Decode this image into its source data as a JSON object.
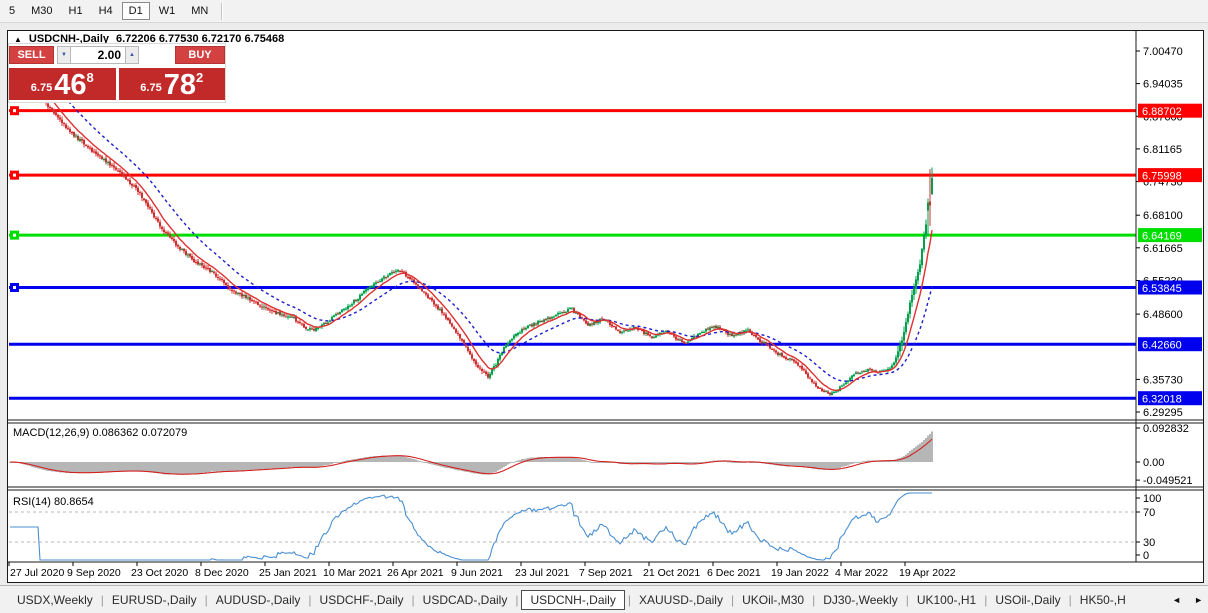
{
  "toolbar": {
    "timeframes": [
      "5",
      "M30",
      "H1",
      "H4",
      "D1",
      "W1",
      "MN"
    ],
    "active": "D1"
  },
  "chart": {
    "title_arrow": "▲",
    "symbol": "USDCNH-,Daily",
    "ohlc": "6.72206 6.77530 6.72170 6.75468",
    "trade_panel": {
      "sell_label": "SELL",
      "buy_label": "BUY",
      "volume": "2.00",
      "spin_down_icon": "▼",
      "spin_up_icon": "▲",
      "sell_small": "6.75",
      "sell_big": "46",
      "sell_sup": "8",
      "buy_small": "6.75",
      "buy_big": "78",
      "buy_sup": "2"
    }
  },
  "macd": {
    "label": "MACD(12,26,9) 0.086362 0.072079",
    "axis": [
      "0.092832",
      "0.00",
      "-0.049521"
    ]
  },
  "rsi": {
    "label": "RSI(14) 80.8654",
    "axis": [
      "100",
      "70",
      "30",
      "0"
    ]
  },
  "y_axis": {
    "ticks": [
      "7.00470",
      "6.94035",
      "6.87600",
      "6.81165",
      "6.74730",
      "6.68100",
      "6.61665",
      "6.55230",
      "6.48600",
      "6.35730",
      "6.29295"
    ]
  },
  "x_axis": {
    "dates": [
      "27 Jul 2020",
      "9 Sep 2020",
      "23 Oct 2020",
      "8 Dec 2020",
      "25 Jan 2021",
      "10 Mar 2021",
      "26 Apr 2021",
      "9 Jun 2021",
      "23 Jul 2021",
      "7 Sep 2021",
      "21 Oct 2021",
      "6 Dec 2021",
      "19 Jan 2022",
      "4 Mar 2022",
      "19 Apr 2022"
    ]
  },
  "tabs": {
    "items": [
      "USDX,Weekly",
      "EURUSD-,Daily",
      "AUDUSD-,Daily",
      "USDCHF-,Daily",
      "USDCAD-,Daily",
      "USDCNH-,Daily",
      "XAUUSD-,Daily",
      "UKOil-,M30",
      "DJ30-,Weekly",
      "UK100-,H1",
      "USOil-,Daily",
      "HK50-,H"
    ],
    "active": "USDCNH-,Daily",
    "scroll_left_icon": "◄",
    "scroll_right_icon": "►"
  },
  "colors": {
    "candle_up": "#00a14b",
    "candle_down": "#cf2f2f",
    "ma_fast": "#e03030",
    "ma_slow": "#1d1dcf",
    "level_red": "#ff0000",
    "level_green": "#00dd00",
    "level_blue": "#0000ee",
    "macd_hist": "#b6b6b6",
    "macd_signal": "#d42020",
    "rsi_line": "#4a8fd2",
    "trade_red": "#c22a2a"
  },
  "chart_data": {
    "type": "candlestick",
    "symbol": "USDCNH",
    "timeframe": "Daily",
    "current_bar": {
      "open": 6.72206,
      "high": 6.7753,
      "low": 6.7217,
      "close": 6.75468
    },
    "y_range": [
      6.29295,
      7.0047
    ],
    "levels": [
      {
        "label": "6.88702",
        "price": 6.88702,
        "color": "red",
        "handle": true
      },
      {
        "label": "6.75998",
        "price": 6.75998,
        "color": "red",
        "handle": true
      },
      {
        "label": "6.64169",
        "price": 6.64169,
        "color": "green",
        "handle": true
      },
      {
        "label": "6.53845",
        "price": 6.53845,
        "color": "blue",
        "handle": true
      },
      {
        "label": "6.42660",
        "price": 6.4266,
        "color": "blue",
        "handle": false
      },
      {
        "label": "6.32018",
        "price": 6.32018,
        "color": "blue",
        "handle": false
      }
    ],
    "indicators": {
      "macd": {
        "params": [
          12,
          26,
          9
        ],
        "value": 0.086362,
        "signal": 0.072079,
        "axis_max": 0.092832,
        "axis_min": -0.049521
      },
      "rsi": {
        "period": 14,
        "value": 80.8654,
        "levels": [
          70,
          30
        ]
      },
      "moving_averages": [
        "fast red MA",
        "slow blue dashed MA"
      ]
    },
    "price_path": [
      [
        8,
        7.0
      ],
      [
        24,
        6.962
      ],
      [
        40,
        6.912
      ],
      [
        56,
        6.872
      ],
      [
        72,
        6.838
      ],
      [
        88,
        6.812
      ],
      [
        100,
        6.792
      ],
      [
        112,
        6.776
      ],
      [
        124,
        6.752
      ],
      [
        136,
        6.728
      ],
      [
        148,
        6.692
      ],
      [
        160,
        6.655
      ],
      [
        172,
        6.628
      ],
      [
        184,
        6.605
      ],
      [
        196,
        6.585
      ],
      [
        208,
        6.572
      ],
      [
        220,
        6.552
      ],
      [
        232,
        6.53
      ],
      [
        244,
        6.52
      ],
      [
        256,
        6.506
      ],
      [
        268,
        6.492
      ],
      [
        280,
        6.484
      ],
      [
        292,
        6.478
      ],
      [
        302,
        6.46
      ],
      [
        312,
        6.456
      ],
      [
        324,
        6.468
      ],
      [
        336,
        6.488
      ],
      [
        350,
        6.508
      ],
      [
        364,
        6.532
      ],
      [
        378,
        6.552
      ],
      [
        390,
        6.568
      ],
      [
        398,
        6.572
      ],
      [
        408,
        6.556
      ],
      [
        420,
        6.532
      ],
      [
        432,
        6.506
      ],
      [
        444,
        6.48
      ],
      [
        456,
        6.446
      ],
      [
        468,
        6.406
      ],
      [
        478,
        6.378
      ],
      [
        486,
        6.362
      ],
      [
        494,
        6.388
      ],
      [
        502,
        6.418
      ],
      [
        512,
        6.444
      ],
      [
        522,
        6.458
      ],
      [
        534,
        6.468
      ],
      [
        546,
        6.478
      ],
      [
        558,
        6.488
      ],
      [
        568,
        6.497
      ],
      [
        578,
        6.482
      ],
      [
        586,
        6.464
      ],
      [
        594,
        6.471
      ],
      [
        602,
        6.477
      ],
      [
        610,
        6.462
      ],
      [
        618,
        6.449
      ],
      [
        626,
        6.456
      ],
      [
        634,
        6.461
      ],
      [
        642,
        6.449
      ],
      [
        650,
        6.439
      ],
      [
        658,
        6.446
      ],
      [
        666,
        6.452
      ],
      [
        674,
        6.439
      ],
      [
        682,
        6.429
      ],
      [
        690,
        6.439
      ],
      [
        698,
        6.448
      ],
      [
        706,
        6.457
      ],
      [
        714,
        6.461
      ],
      [
        722,
        6.452
      ],
      [
        730,
        6.443
      ],
      [
        738,
        6.448
      ],
      [
        746,
        6.454
      ],
      [
        754,
        6.439
      ],
      [
        762,
        6.429
      ],
      [
        770,
        6.416
      ],
      [
        778,
        6.406
      ],
      [
        786,
        6.398
      ],
      [
        794,
        6.389
      ],
      [
        802,
        6.373
      ],
      [
        810,
        6.353
      ],
      [
        818,
        6.339
      ],
      [
        826,
        6.329
      ],
      [
        834,
        6.334
      ],
      [
        842,
        6.349
      ],
      [
        850,
        6.364
      ],
      [
        858,
        6.372
      ],
      [
        866,
        6.378
      ],
      [
        874,
        6.371
      ],
      [
        882,
        6.373
      ],
      [
        888,
        6.381
      ],
      [
        894,
        6.398
      ],
      [
        899,
        6.428
      ],
      [
        903,
        6.462
      ],
      [
        907,
        6.498
      ],
      [
        911,
        6.53
      ],
      [
        915,
        6.558
      ],
      [
        918,
        6.582
      ],
      [
        921,
        6.63
      ],
      [
        924,
        6.662
      ],
      [
        926,
        6.678
      ],
      [
        928,
        6.7
      ],
      [
        930,
        6.735
      ],
      [
        932,
        6.755
      ]
    ]
  }
}
